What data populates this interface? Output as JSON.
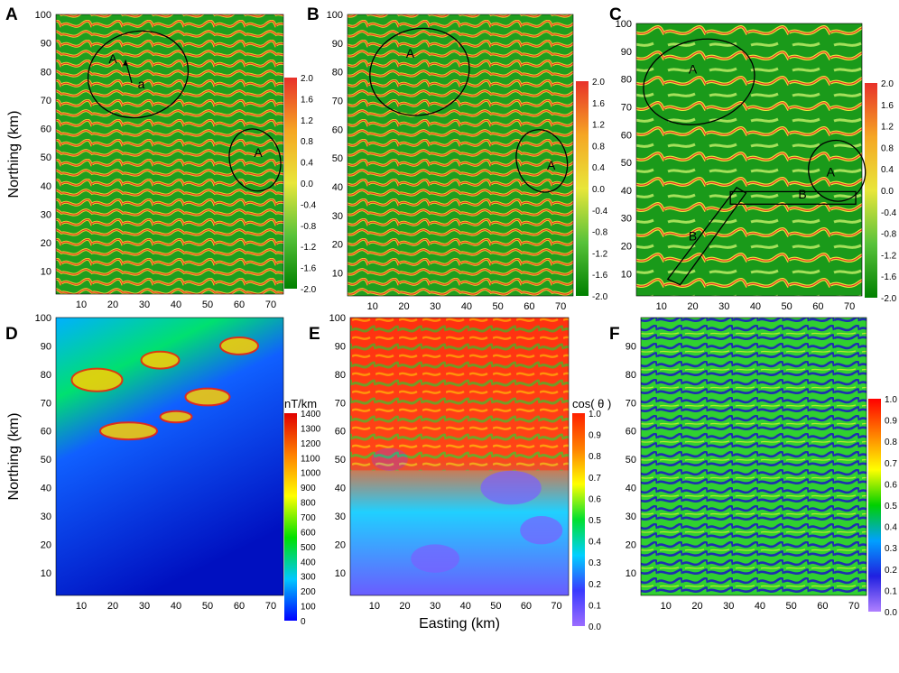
{
  "chart_data": [
    {
      "panel": "A",
      "type": "heatmap",
      "xlabel": "",
      "ylabel": "Northing (km)",
      "xticks": [
        10,
        20,
        30,
        40,
        50,
        60,
        70
      ],
      "yticks": [
        10,
        20,
        30,
        40,
        50,
        60,
        70,
        80,
        90,
        100
      ],
      "xlim": [
        2,
        74
      ],
      "ylim": [
        2,
        100
      ],
      "colorbar": {
        "ticks": [
          "2.0",
          "1.6",
          "1.2",
          "0.8",
          "0.4",
          "0.0",
          "-0.4",
          "-0.8",
          "-1.2",
          "-1.6",
          "-2.0"
        ],
        "range": [
          -2.0,
          2.0
        ],
        "unit": ""
      },
      "annotations": [
        {
          "text": "A",
          "x": 20,
          "y": 83
        },
        {
          "text": "a",
          "x": 29,
          "y": 74
        },
        {
          "text": "A",
          "x": 66,
          "y": 50
        }
      ],
      "ellipses": [
        {
          "cx": 28,
          "cy": 79,
          "rx": 16,
          "ry": 15
        },
        {
          "cx": 65,
          "cy": 49,
          "rx": 8,
          "ry": 11
        }
      ]
    },
    {
      "panel": "B",
      "type": "heatmap",
      "xlabel": "Easting (km)",
      "ylabel": "",
      "xticks": [
        10,
        20,
        30,
        40,
        50,
        60,
        70
      ],
      "yticks": [
        10,
        20,
        30,
        40,
        50,
        60,
        70,
        80,
        90,
        100
      ],
      "xlim": [
        2,
        74
      ],
      "ylim": [
        2,
        100
      ],
      "colorbar": {
        "ticks": [
          "2.0",
          "1.6",
          "1.2",
          "0.8",
          "0.4",
          "0.0",
          "-0.4",
          "-0.8",
          "-1.2",
          "-1.6",
          "-2.0"
        ],
        "range": [
          -2.0,
          2.0
        ],
        "unit": ""
      },
      "annotations": [
        {
          "text": "A",
          "x": 22,
          "y": 85
        },
        {
          "text": "A",
          "x": 67,
          "y": 46
        }
      ],
      "ellipses": [
        {
          "cx": 25,
          "cy": 80,
          "rx": 16,
          "ry": 15
        },
        {
          "cx": 64,
          "cy": 49,
          "rx": 8,
          "ry": 11
        }
      ]
    },
    {
      "panel": "C",
      "type": "heatmap",
      "xlabel": "",
      "ylabel": "",
      "xticks": [
        10,
        20,
        30,
        40,
        50,
        60,
        70
      ],
      "yticks": [
        10,
        20,
        30,
        40,
        50,
        60,
        70,
        80,
        90,
        100
      ],
      "xlim": [
        2,
        74
      ],
      "ylim": [
        2,
        100
      ],
      "colorbar": {
        "ticks": [
          "2.0",
          "1.6",
          "1.2",
          "0.8",
          "0.4",
          "0.0",
          "-0.4",
          "-0.8",
          "-1.2",
          "-1.6",
          "-2.0"
        ],
        "range": [
          -2.0,
          2.0
        ],
        "unit": ""
      },
      "annotations": [
        {
          "text": "A",
          "x": 20,
          "y": 82
        },
        {
          "text": "A",
          "x": 64,
          "y": 45
        },
        {
          "text": "B",
          "x": 55,
          "y": 37
        },
        {
          "text": "B",
          "x": 20,
          "y": 22
        }
      ],
      "ellipses": [
        {
          "cx": 22,
          "cy": 79,
          "rx": 18,
          "ry": 15
        },
        {
          "cx": 66,
          "cy": 47,
          "rx": 9,
          "ry": 11
        }
      ]
    },
    {
      "panel": "D",
      "type": "heatmap",
      "xlabel": "",
      "ylabel": "Northing (km)",
      "xticks": [
        10,
        20,
        30,
        40,
        50,
        60,
        70
      ],
      "yticks": [
        10,
        20,
        30,
        40,
        50,
        60,
        70,
        80,
        90,
        100
      ],
      "xlim": [
        2,
        74
      ],
      "ylim": [
        2,
        100
      ],
      "colorbar": {
        "ticks": [
          "1400",
          "1300",
          "1200",
          "1100",
          "1000",
          "900",
          "800",
          "700",
          "600",
          "500",
          "400",
          "300",
          "200",
          "100",
          "0"
        ],
        "range": [
          0,
          1400
        ],
        "unit": "nT/km"
      }
    },
    {
      "panel": "E",
      "type": "heatmap",
      "xlabel": "Easting (km)",
      "ylabel": "",
      "xticks": [
        10,
        20,
        30,
        40,
        50,
        60,
        70
      ],
      "yticks": [
        10,
        20,
        30,
        40,
        50,
        60,
        70,
        80,
        90,
        100
      ],
      "xlim": [
        2,
        74
      ],
      "ylim": [
        2,
        100
      ],
      "colorbar": {
        "ticks": [
          "1.0",
          "0.9",
          "0.8",
          "0.7",
          "0.6",
          "0.5",
          "0.4",
          "0.3",
          "0.2",
          "0.1",
          "0.0"
        ],
        "range": [
          0,
          1
        ],
        "unit": "cos( θ )"
      }
    },
    {
      "panel": "F",
      "type": "heatmap",
      "xlabel": "",
      "ylabel": "",
      "xticks": [
        10,
        20,
        30,
        40,
        50,
        60,
        70
      ],
      "yticks": [
        10,
        20,
        30,
        40,
        50,
        60,
        70,
        80,
        90
      ],
      "xlim": [
        2,
        74
      ],
      "ylim": [
        2,
        100
      ],
      "colorbar": {
        "ticks": [
          "1.0",
          "0.9",
          "0.8",
          "0.7",
          "0.6",
          "0.5",
          "0.4",
          "0.3",
          "0.2",
          "0.1",
          "0.0"
        ],
        "range": [
          0,
          1
        ],
        "unit": ""
      }
    }
  ],
  "colors": {
    "curvature_stops": [
      "#008000",
      "#1a9a1a",
      "#5fc13a",
      "#e8e63a",
      "#f5a623",
      "#e8312a"
    ],
    "gradient_stops": [
      "#0000c8",
      "#0a3cff",
      "#00c8ff",
      "#00e000",
      "#ffff00",
      "#ff8000",
      "#ff0000",
      "#c80000"
    ],
    "cos_stops": [
      "#9b6cff",
      "#3a3aff",
      "#00d0ff",
      "#00e030",
      "#ffff00",
      "#ff8000",
      "#ff2000"
    ],
    "outline": "#000000"
  }
}
